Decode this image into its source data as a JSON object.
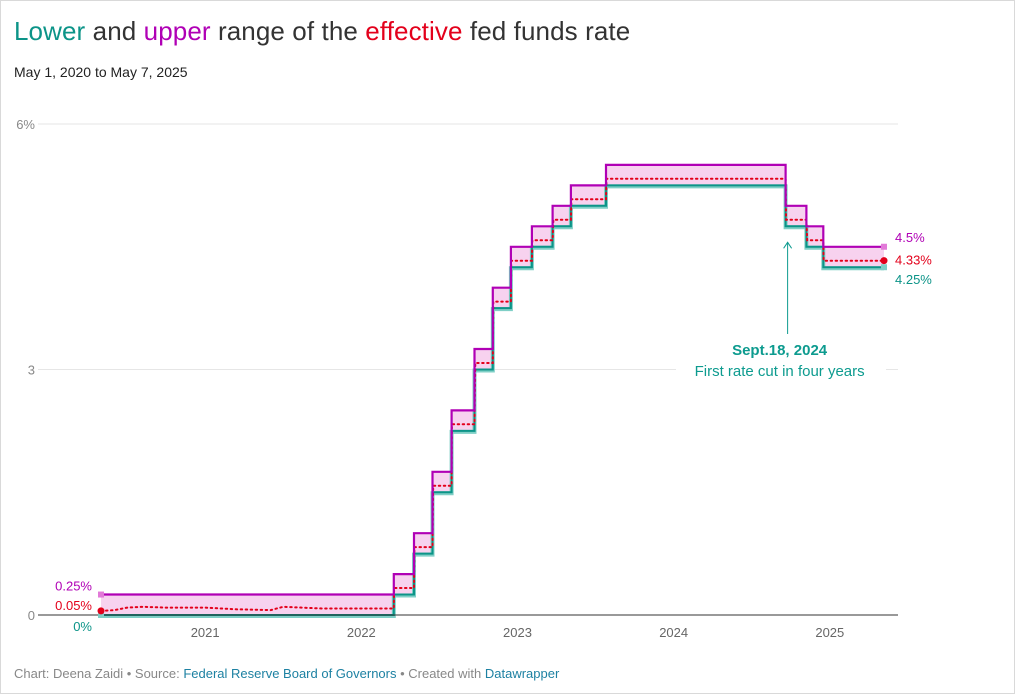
{
  "title": {
    "lower": "Lower",
    "and": " and ",
    "upper": "upper",
    "middle": " range of the ",
    "effective": "effective",
    "end": " fed funds rate"
  },
  "subtitle": "May 1, 2020 to May 7, 2025",
  "footer": {
    "chart_by": "Chart: Deena Zaidi",
    "sep1": " • Source: ",
    "source": "Federal Reserve Board of Governors",
    "sep2": " • Created with ",
    "tool": "Datawrapper"
  },
  "colors": {
    "lower": "#0c9488",
    "upper": "#b000b5",
    "effective": "#e3001b",
    "band": "#f7d2ef",
    "grid": "#e6e6e6",
    "axis": "#333333",
    "tick": "#888888",
    "annotation": "#0d9b8f",
    "title": "#333333"
  },
  "chart_data": {
    "type": "line",
    "x_range": [
      2020.333,
      2025.347
    ],
    "ylim": [
      0,
      6
    ],
    "y_ticks": [
      0,
      3,
      6
    ],
    "y_tick_labels": [
      "0",
      "3",
      "6%"
    ],
    "x_ticks": [
      2021,
      2022,
      2023,
      2024,
      2025
    ],
    "x_tick_labels": [
      "2021",
      "2022",
      "2023",
      "2024",
      "2025"
    ],
    "grid": true,
    "series": [
      {
        "name": "Upper",
        "steps": [
          [
            2020.333,
            0.25
          ],
          [
            2022.208,
            0.5
          ],
          [
            2022.337,
            1.0
          ],
          [
            2022.456,
            1.75
          ],
          [
            2022.578,
            2.5
          ],
          [
            2022.725,
            3.25
          ],
          [
            2022.842,
            4.0
          ],
          [
            2022.958,
            4.5
          ],
          [
            2023.092,
            4.75
          ],
          [
            2023.225,
            5.0
          ],
          [
            2023.342,
            5.25
          ],
          [
            2023.567,
            5.5
          ],
          [
            2024.717,
            5.0
          ],
          [
            2024.85,
            4.75
          ],
          [
            2024.958,
            4.5
          ],
          [
            2025.347,
            4.5
          ]
        ]
      },
      {
        "name": "Lower",
        "steps": [
          [
            2020.333,
            0.0
          ],
          [
            2022.208,
            0.25
          ],
          [
            2022.337,
            0.75
          ],
          [
            2022.456,
            1.5
          ],
          [
            2022.578,
            2.25
          ],
          [
            2022.725,
            3.0
          ],
          [
            2022.842,
            3.75
          ],
          [
            2022.958,
            4.25
          ],
          [
            2023.092,
            4.5
          ],
          [
            2023.225,
            4.75
          ],
          [
            2023.342,
            5.0
          ],
          [
            2023.567,
            5.25
          ],
          [
            2024.717,
            4.75
          ],
          [
            2024.85,
            4.5
          ],
          [
            2024.958,
            4.25
          ],
          [
            2025.347,
            4.25
          ]
        ]
      },
      {
        "name": "Effective",
        "points": [
          [
            2020.333,
            0.05
          ],
          [
            2020.42,
            0.06
          ],
          [
            2020.5,
            0.09
          ],
          [
            2020.6,
            0.1
          ],
          [
            2020.75,
            0.09
          ],
          [
            2021.0,
            0.09
          ],
          [
            2021.2,
            0.07
          ],
          [
            2021.42,
            0.06
          ],
          [
            2021.5,
            0.1
          ],
          [
            2021.75,
            0.08
          ],
          [
            2022.0,
            0.08
          ],
          [
            2022.208,
            0.08
          ],
          [
            2022.21,
            0.33
          ],
          [
            2022.337,
            0.33
          ],
          [
            2022.34,
            0.83
          ],
          [
            2022.456,
            0.83
          ],
          [
            2022.46,
            1.58
          ],
          [
            2022.578,
            1.58
          ],
          [
            2022.58,
            2.33
          ],
          [
            2022.725,
            2.33
          ],
          [
            2022.73,
            3.08
          ],
          [
            2022.842,
            3.08
          ],
          [
            2022.845,
            3.83
          ],
          [
            2022.958,
            3.83
          ],
          [
            2022.96,
            4.33
          ],
          [
            2023.092,
            4.33
          ],
          [
            2023.095,
            4.58
          ],
          [
            2023.225,
            4.58
          ],
          [
            2023.23,
            4.83
          ],
          [
            2023.342,
            4.83
          ],
          [
            2023.345,
            5.08
          ],
          [
            2023.567,
            5.08
          ],
          [
            2023.57,
            5.33
          ],
          [
            2024.717,
            5.33
          ],
          [
            2024.72,
            4.83
          ],
          [
            2024.85,
            4.83
          ],
          [
            2024.855,
            4.58
          ],
          [
            2024.958,
            4.58
          ],
          [
            2024.96,
            4.33
          ],
          [
            2025.347,
            4.33
          ]
        ]
      }
    ],
    "labels": {
      "upper_start": "0.25%",
      "effective_start": "0.05%",
      "lower_start": "0%",
      "upper_end": "4.5%",
      "effective_end": "4.33%",
      "lower_end": "4.25%"
    },
    "annotation": {
      "date_line": "Sept.18, 2024",
      "text_line": "First rate cut in four years",
      "x": 2024.717,
      "y": 4.75
    }
  }
}
